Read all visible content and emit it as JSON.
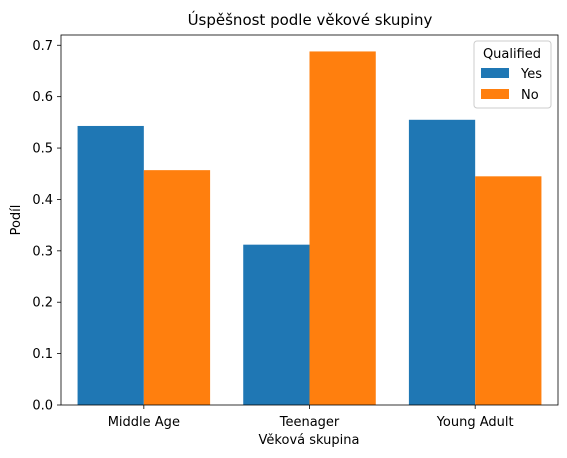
{
  "chart_data": {
    "type": "bar",
    "title": "Úspěšnost podle věkové skupiny",
    "xlabel": "Věková skupina",
    "ylabel": "Podíl",
    "categories": [
      "Middle Age",
      "Teenager",
      "Young Adult"
    ],
    "series": [
      {
        "name": "Yes",
        "color": "#1f77b4",
        "values": [
          0.543,
          0.312,
          0.555
        ]
      },
      {
        "name": "No",
        "color": "#ff7f0e",
        "values": [
          0.457,
          0.688,
          0.445
        ]
      }
    ],
    "ylim": [
      0,
      0.7
    ],
    "yticks": [
      "0.0",
      "0.1",
      "0.2",
      "0.3",
      "0.4",
      "0.5",
      "0.6",
      "0.7"
    ],
    "grid": false,
    "legend": {
      "title": "Qualified",
      "placement": "top-right"
    }
  }
}
